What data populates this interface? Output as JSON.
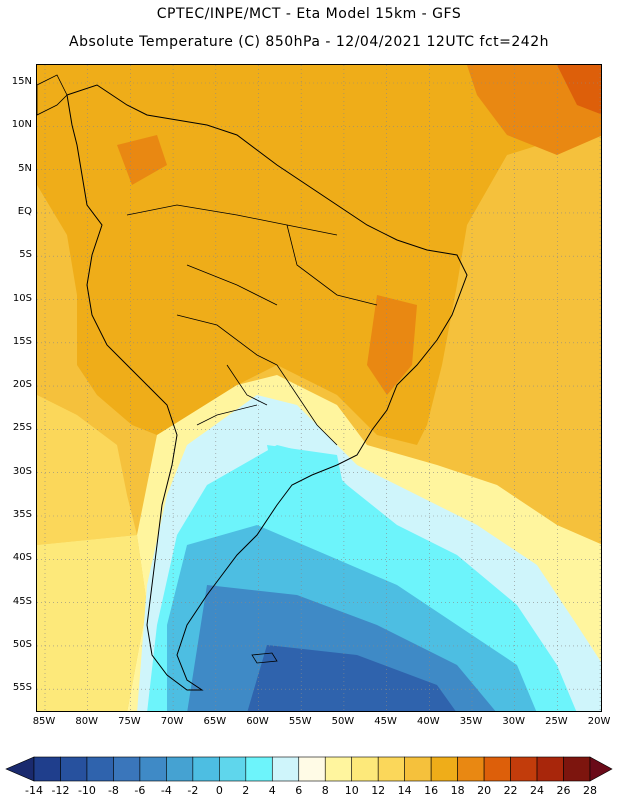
{
  "title_line1": "CPTEC/INPE/MCT  -   Eta Model 15km  -  GFS",
  "title_line2": "Absolute Temperature (C) 850hPa  - 12/04/2021 12UTC fct=242h",
  "lat_labels": [
    "15N",
    "10N",
    "5N",
    "EQ",
    "5S",
    "10S",
    "15S",
    "20S",
    "25S",
    "30S",
    "35S",
    "40S",
    "45S",
    "50S",
    "55S"
  ],
  "lon_labels": [
    "85W",
    "80W",
    "75W",
    "70W",
    "65W",
    "60W",
    "55W",
    "50W",
    "45W",
    "40W",
    "35W",
    "30W",
    "25W",
    "20W"
  ],
  "colorbar": {
    "labels": [
      "-14",
      "-12",
      "-10",
      "-8",
      "-6",
      "-4",
      "-2",
      "0",
      "2",
      "4",
      "6",
      "8",
      "10",
      "12",
      "14",
      "16",
      "18",
      "20",
      "22",
      "24",
      "26",
      "28"
    ],
    "colors": [
      "#1f3e8c",
      "#27519e",
      "#2f63ad",
      "#3a76bb",
      "#3f8ac6",
      "#45a2d2",
      "#4dbee2",
      "#5fd6ec",
      "#6df4fb",
      "#cff5fb",
      "#fffbe6",
      "#fff59e",
      "#fde97a",
      "#fbd75a",
      "#f5c13c",
      "#efad19",
      "#e98812",
      "#dd5f0a",
      "#c23c0b",
      "#a8260b",
      "#7d150e"
    ],
    "under_color": "#1a2a6e",
    "over_color": "#6a0a18"
  },
  "colors": {
    "ocean_background": "#f5c13c",
    "land_mask": "#efad19",
    "warm_core": "#e98812",
    "border_lines": "#000000",
    "grid_lines": "#888888"
  }
}
